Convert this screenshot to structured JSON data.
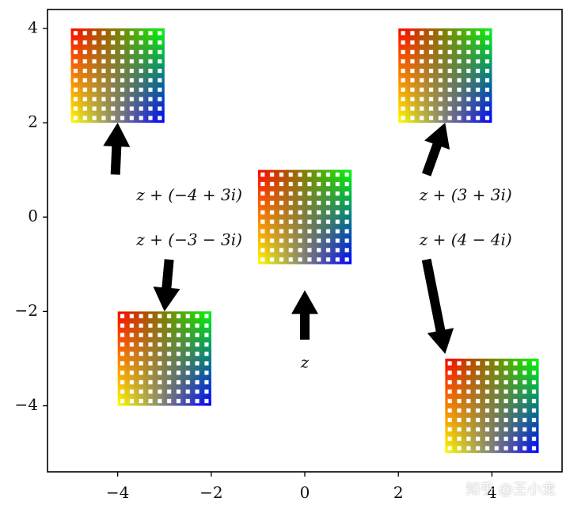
{
  "chart_data": {
    "type": "scatter",
    "xlim": [
      -5.5,
      5.5
    ],
    "ylim": [
      -5.4,
      4.4
    ],
    "grid": false,
    "x_ticks": [
      {
        "value": -4,
        "label": "−4"
      },
      {
        "value": -2,
        "label": "−2"
      },
      {
        "value": 0,
        "label": "0"
      },
      {
        "value": 2,
        "label": "2"
      },
      {
        "value": 4,
        "label": "4"
      }
    ],
    "y_ticks": [
      {
        "value": 4,
        "label": "4"
      },
      {
        "value": 2,
        "label": "2"
      },
      {
        "value": 0,
        "label": "0"
      },
      {
        "value": -2,
        "label": "−2"
      },
      {
        "value": -4,
        "label": "−4"
      }
    ],
    "grids": [
      {
        "name": "z",
        "center": [
          0,
          0
        ]
      },
      {
        "name": "z + (-4 + 3i)",
        "center": [
          -4,
          3
        ]
      },
      {
        "name": "z + (3 + 3i)",
        "center": [
          3,
          3
        ]
      },
      {
        "name": "z + (-3 - 3i)",
        "center": [
          -3,
          -3
        ]
      },
      {
        "name": "z + (4 - 4i)",
        "center": [
          4,
          -4
        ]
      }
    ],
    "annotations": [
      {
        "text": "z + (−4 + 3i)",
        "at": [
          -3.6,
          0.45
        ],
        "from": [
          -4.05,
          0.9
        ],
        "to": [
          -4.0,
          2.0
        ]
      },
      {
        "text": "z + (3 + 3i)",
        "at": [
          2.45,
          0.45
        ],
        "from": [
          2.6,
          0.9
        ],
        "to": [
          3.0,
          2.0
        ]
      },
      {
        "text": "z + (−3 − 3i)",
        "at": [
          -3.6,
          -0.5
        ],
        "from": [
          -2.9,
          -0.9
        ],
        "to": [
          -3.0,
          -2.0
        ]
      },
      {
        "text": "z + (4 − 4i)",
        "at": [
          2.45,
          -0.5
        ],
        "from": [
          2.6,
          -0.9
        ],
        "to": [
          3.0,
          -2.9
        ]
      },
      {
        "text": "z",
        "at": [
          0,
          -3.1
        ],
        "from": [
          0,
          -2.6
        ],
        "to": [
          0,
          -1.55
        ]
      }
    ]
  },
  "watermark": "知乎 @王小龙"
}
